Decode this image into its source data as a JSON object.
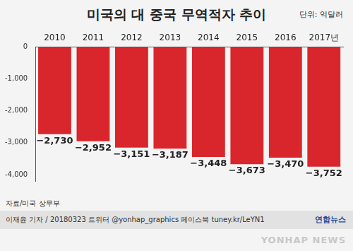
{
  "chart_data": {
    "type": "bar",
    "title": "미국의 대 중국 무역적자 추이",
    "subtitle": "단위: 억달러",
    "source": "자료/미국 상무부",
    "footer": "이재윤 기자 / 20180323   트위터 @yonhap_graphics   페이스북 tuney.kr/LeYN1",
    "annotations": [
      "연합뉴스",
      "YONHAP NEWS"
    ],
    "categories": [
      "2010",
      "2011",
      "2012",
      "2013",
      "2014",
      "2015",
      "2016",
      "2017년"
    ],
    "values": [
      -2730,
      -2952,
      -3151,
      -3187,
      -3448,
      -3673,
      -3470,
      -3752
    ],
    "value_labels": [
      "−2,730",
      "−2,952",
      "−3,151",
      "−3,187",
      "−3,448",
      "−3,673",
      "−3,470",
      "−3,752"
    ],
    "data_labels": true,
    "color": "#d9262c",
    "ylim": [
      -4200,
      0
    ],
    "yticks": [
      0,
      {
        "value": -1000,
        "label": "-1,000"
      },
      {
        "value": -2000,
        "label": "-2,000"
      },
      {
        "value": -3000,
        "label": "-3,000"
      },
      {
        "value": -4000,
        "label": "-4,000"
      }
    ],
    "grid": false
  }
}
